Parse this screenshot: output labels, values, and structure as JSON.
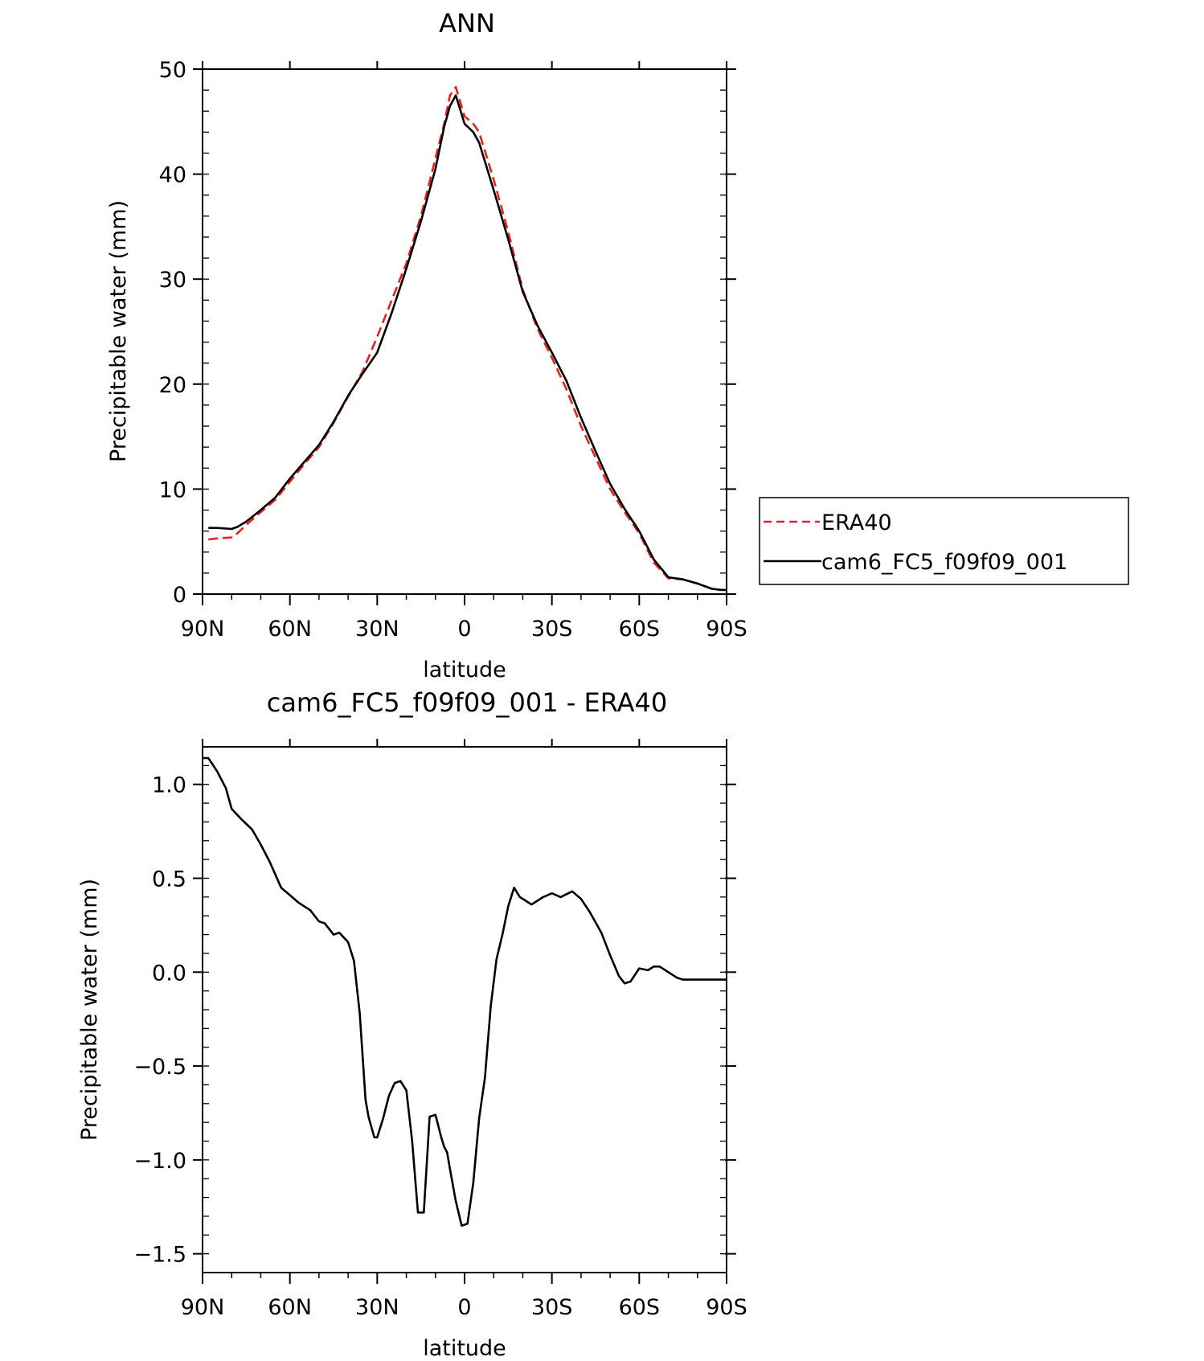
{
  "chart_data": [
    {
      "type": "line",
      "title": "ANN",
      "xlabel": "latitude",
      "ylabel": "Precipitable water (mm)",
      "x_ticks": [
        {
          "value": 90,
          "label": "90N"
        },
        {
          "value": 60,
          "label": "60N"
        },
        {
          "value": 30,
          "label": "30N"
        },
        {
          "value": 0,
          "label": "0"
        },
        {
          "value": -30,
          "label": "30S"
        },
        {
          "value": -60,
          "label": "60S"
        },
        {
          "value": -90,
          "label": "90S"
        }
      ],
      "xlim": [
        90,
        -90
      ],
      "ylim": [
        0,
        50
      ],
      "y_ticks": [
        0,
        10,
        20,
        30,
        40,
        50
      ],
      "y_tick_labels": [
        "0",
        "10",
        "20",
        "30",
        "40",
        "50"
      ],
      "legend_position": "right",
      "series": [
        {
          "name": "ERA40",
          "color": "#e8211d",
          "dash": "dashed",
          "x": [
            88,
            85,
            80,
            78,
            75,
            70,
            65,
            60,
            55,
            50,
            45,
            40,
            35,
            30,
            25,
            20,
            15,
            10,
            7,
            5,
            3,
            0,
            -3,
            -5,
            -10,
            -15,
            -20,
            -25,
            -30,
            -35,
            -40,
            -45,
            -50,
            -55,
            -60,
            -65,
            -70,
            -75,
            -80,
            -85,
            -88,
            -90
          ],
          "y": [
            5.2,
            5.3,
            5.4,
            5.8,
            6.6,
            7.8,
            9.0,
            10.7,
            12.4,
            14.0,
            16.3,
            18.8,
            21.2,
            24.5,
            28.0,
            31.5,
            36.0,
            41.5,
            44.8,
            47.5,
            48.3,
            45.5,
            44.8,
            44.0,
            39.5,
            34.5,
            29.0,
            25.3,
            22.5,
            19.5,
            16.0,
            13.0,
            10.0,
            7.8,
            5.8,
            3.0,
            1.5,
            1.4,
            1.0,
            0.5,
            0.4,
            0.4
          ]
        },
        {
          "name": "cam6_FC5_f09f09_001",
          "color": "#000000",
          "dash": "solid",
          "x": [
            88,
            85,
            80,
            78,
            75,
            70,
            65,
            60,
            55,
            50,
            45,
            40,
            35,
            30,
            25,
            20,
            15,
            10,
            7,
            5,
            3,
            0,
            -3,
            -5,
            -10,
            -15,
            -20,
            -25,
            -30,
            -35,
            -40,
            -45,
            -50,
            -55,
            -60,
            -65,
            -70,
            -75,
            -80,
            -85,
            -88,
            -90
          ],
          "y": [
            6.3,
            6.3,
            6.2,
            6.4,
            6.9,
            8.0,
            9.2,
            11.0,
            12.6,
            14.2,
            16.4,
            18.9,
            21.0,
            23.0,
            26.8,
            31.0,
            35.5,
            40.5,
            44.5,
            46.5,
            47.5,
            44.8,
            44.0,
            43.0,
            38.5,
            33.8,
            28.8,
            25.6,
            23.0,
            20.3,
            16.8,
            13.6,
            10.5,
            8.1,
            6.0,
            3.3,
            1.6,
            1.4,
            1.0,
            0.5,
            0.4,
            0.4
          ]
        }
      ]
    },
    {
      "type": "line",
      "title": "cam6_FC5_f09f09_001 - ERA40",
      "xlabel": "latitude",
      "ylabel": "Precipitable water (mm)",
      "x_ticks": [
        {
          "value": 90,
          "label": "90N"
        },
        {
          "value": 60,
          "label": "60N"
        },
        {
          "value": 30,
          "label": "30N"
        },
        {
          "value": 0,
          "label": "0"
        },
        {
          "value": -30,
          "label": "30S"
        },
        {
          "value": -60,
          "label": "60S"
        },
        {
          "value": -90,
          "label": "90S"
        }
      ],
      "xlim": [
        90,
        -90
      ],
      "ylim": [
        -1.6,
        1.2
      ],
      "y_ticks": [
        -1.5,
        -1.0,
        -0.5,
        0.0,
        0.5,
        1.0
      ],
      "y_tick_labels": [
        "-1.5",
        "-1.0",
        "-0.5",
        "0.0",
        "0.5",
        "1.0"
      ],
      "series": [
        {
          "color": "#000000",
          "dash": "solid",
          "x": [
            90,
            88,
            85,
            82,
            80,
            77,
            73,
            70,
            67,
            63,
            60,
            57,
            53,
            50,
            48,
            45,
            43,
            40,
            38,
            36,
            34,
            33,
            31,
            30,
            28,
            26,
            24,
            22,
            20,
            18,
            16,
            14,
            12,
            10,
            8,
            7,
            6,
            5,
            3,
            1,
            -1,
            -3,
            -5,
            -7,
            -9,
            -11,
            -13,
            -15,
            -17,
            -19,
            -21,
            -23,
            -27,
            -30,
            -33,
            -37,
            -40,
            -43,
            -47,
            -50,
            -53,
            -55,
            -57,
            -60,
            -63,
            -65,
            -67,
            -70,
            -73,
            -75,
            -77,
            -80,
            -83,
            -85,
            -88,
            -90
          ],
          "y": [
            1.14,
            1.14,
            1.07,
            0.98,
            0.87,
            0.82,
            0.76,
            0.68,
            0.59,
            0.45,
            0.41,
            0.37,
            0.33,
            0.27,
            0.26,
            0.2,
            0.21,
            0.16,
            0.06,
            -0.22,
            -0.68,
            -0.77,
            -0.88,
            -0.88,
            -0.78,
            -0.66,
            -0.59,
            -0.58,
            -0.63,
            -0.9,
            -1.28,
            -1.28,
            -0.77,
            -0.76,
            -0.88,
            -0.93,
            -0.96,
            -1.05,
            -1.22,
            -1.35,
            -1.34,
            -1.12,
            -0.78,
            -0.56,
            -0.18,
            0.07,
            0.2,
            0.35,
            0.45,
            0.4,
            0.38,
            0.36,
            0.4,
            0.42,
            0.4,
            0.43,
            0.39,
            0.32,
            0.21,
            0.09,
            -0.02,
            -0.06,
            -0.05,
            0.02,
            0.01,
            0.03,
            0.03,
            0.0,
            -0.03,
            -0.04,
            -0.04,
            -0.04,
            -0.04,
            -0.04,
            -0.04,
            -0.04
          ]
        }
      ]
    }
  ]
}
